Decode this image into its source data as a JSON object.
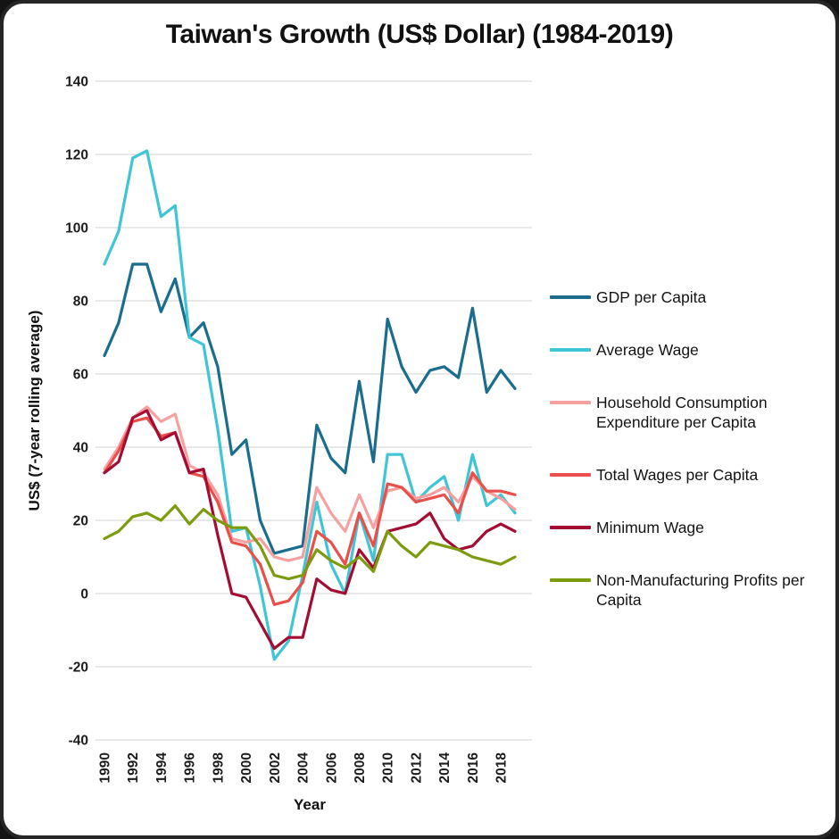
{
  "chart_data": {
    "type": "line",
    "title": "Taiwan's Growth (US$ Dollar) (1984-2019)",
    "xlabel": "Year",
    "ylabel": "US$ (7-year rolling average)",
    "ylim": [
      -40,
      140
    ],
    "ytick_step": 20,
    "grid": "horizontal",
    "legend_position": "right",
    "x": [
      1990,
      1991,
      1992,
      1993,
      1994,
      1995,
      1996,
      1997,
      1998,
      1999,
      2000,
      2001,
      2002,
      2003,
      2004,
      2005,
      2006,
      2007,
      2008,
      2009,
      2010,
      2011,
      2012,
      2013,
      2014,
      2015,
      2016,
      2017,
      2018,
      2019
    ],
    "xticks": [
      1990,
      1992,
      1994,
      1996,
      1998,
      2000,
      2002,
      2004,
      2006,
      2008,
      2010,
      2012,
      2014,
      2016,
      2018
    ],
    "series": [
      {
        "name": "GDP per Capita",
        "color": "#1b6d8e",
        "values": [
          65,
          74,
          90,
          90,
          77,
          86,
          70,
          74,
          62,
          38,
          42,
          20,
          11,
          12,
          13,
          46,
          37,
          33,
          58,
          36,
          75,
          62,
          55,
          61,
          62,
          59,
          78,
          55,
          61,
          56
        ]
      },
      {
        "name": "Average Wage",
        "color": "#3fc5d5",
        "values": [
          90,
          99,
          119,
          121,
          103,
          106,
          70,
          68,
          45,
          17,
          18,
          2,
          -18,
          -13,
          5,
          25,
          8,
          0,
          22,
          9,
          38,
          38,
          25,
          29,
          32,
          20,
          38,
          24,
          27,
          22
        ]
      },
      {
        "name": "Household Consumption Expenditure per Capita",
        "color": "#f8a0a0",
        "values": [
          34,
          40,
          48,
          51,
          47,
          49,
          35,
          33,
          27,
          15,
          14,
          15,
          10,
          9,
          10,
          29,
          22,
          17,
          27,
          18,
          28,
          29,
          26,
          27,
          29,
          25,
          32,
          28,
          26,
          23
        ]
      },
      {
        "name": "Total Wages per Capita",
        "color": "#e94f4b",
        "values": [
          33,
          39,
          47,
          48,
          43,
          44,
          33,
          32,
          25,
          14,
          13,
          8,
          -3,
          -2,
          3,
          17,
          14,
          8,
          22,
          13,
          30,
          29,
          25,
          26,
          27,
          22,
          33,
          28,
          28,
          27
        ]
      },
      {
        "name": "Minimum Wage",
        "color": "#a30d33",
        "values": [
          33,
          36,
          48,
          50,
          42,
          44,
          33,
          34,
          16,
          0,
          -1,
          -8,
          -15,
          -12,
          -12,
          4,
          1,
          0,
          12,
          7,
          17,
          18,
          19,
          22,
          15,
          12,
          13,
          17,
          19,
          17
        ]
      },
      {
        "name": "Non-Manufacturing Profits per Capita",
        "color": "#7d9b0e",
        "values": [
          15,
          17,
          21,
          22,
          20,
          24,
          19,
          23,
          20,
          18,
          18,
          13,
          5,
          4,
          5,
          12,
          9,
          7,
          10,
          6,
          17,
          13,
          10,
          14,
          13,
          12,
          10,
          9,
          8,
          10
        ]
      }
    ]
  }
}
